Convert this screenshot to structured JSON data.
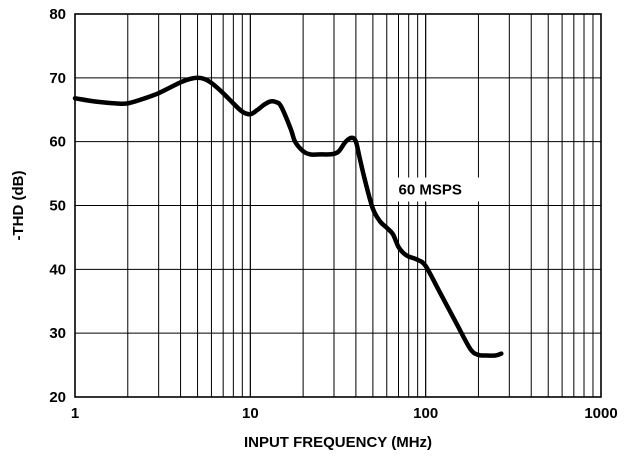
{
  "chart_data": {
    "type": "line",
    "title": "",
    "xlabel": "INPUT FREQUENCY (MHz)",
    "ylabel": "-THD (dB)",
    "xscale": "log",
    "xlim": [
      1,
      1000
    ],
    "ylim": [
      20,
      80
    ],
    "grid": true,
    "x_ticks": [
      {
        "value": 1,
        "label": "1"
      },
      {
        "value": 10,
        "label": "10"
      },
      {
        "value": 100,
        "label": "100"
      },
      {
        "value": 1000,
        "label": "1000"
      }
    ],
    "y_ticks": [
      {
        "value": 20,
        "label": "20"
      },
      {
        "value": 30,
        "label": "30"
      },
      {
        "value": 40,
        "label": "40"
      },
      {
        "value": 50,
        "label": "50"
      },
      {
        "value": 60,
        "label": "60"
      },
      {
        "value": 70,
        "label": "70"
      },
      {
        "value": 80,
        "label": "80"
      }
    ],
    "annotations": [
      {
        "text": "60 MSPS",
        "x": 70,
        "y": 52.5
      }
    ],
    "series": [
      {
        "x": [
          1,
          1.3,
          1.7,
          2,
          2.5,
          3,
          3.5,
          4,
          4.5,
          5,
          5.5,
          6,
          7,
          8,
          9,
          10,
          11,
          12,
          13,
          14,
          15,
          17,
          18,
          20,
          22,
          25,
          28,
          30,
          32,
          35,
          38,
          40,
          42,
          45,
          50,
          55,
          60,
          65,
          70,
          75,
          80,
          90,
          100,
          120,
          150,
          180,
          200,
          220,
          250,
          270
        ],
        "y": [
          66.8,
          66.3,
          66.0,
          66.0,
          66.8,
          67.6,
          68.5,
          69.3,
          69.8,
          70.0,
          69.8,
          69.2,
          67.6,
          66.0,
          64.7,
          64.3,
          65.0,
          65.8,
          66.3,
          66.2,
          65.5,
          62.0,
          60.0,
          58.5,
          58.0,
          58.0,
          58.0,
          58.1,
          58.5,
          60.0,
          60.6,
          60.0,
          57.5,
          54.0,
          49.5,
          47.5,
          46.5,
          45.5,
          43.5,
          42.5,
          42.0,
          41.5,
          40.5,
          36.5,
          31.5,
          27.5,
          26.6,
          26.5,
          26.5,
          26.8
        ]
      }
    ]
  }
}
